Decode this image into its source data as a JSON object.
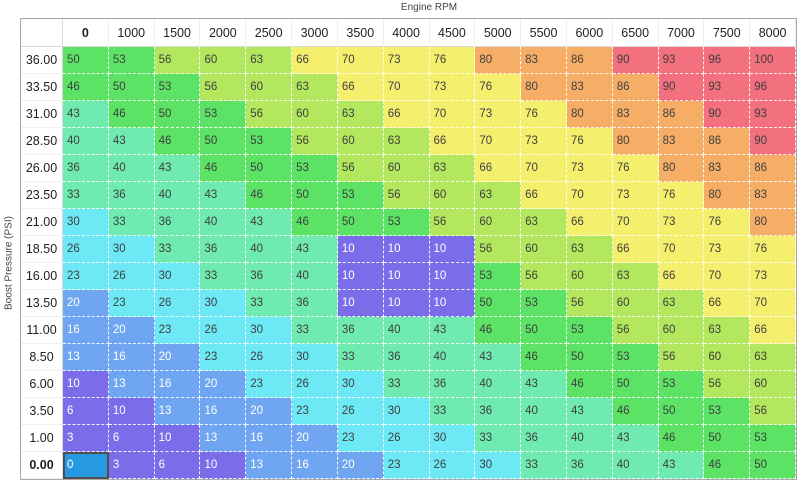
{
  "table": {
    "x_title": "Engine RPM",
    "y_title": "Boost Pressure (PSI)",
    "columns": [
      "0",
      "1000",
      "1500",
      "2000",
      "2500",
      "3000",
      "3500",
      "4000",
      "4500",
      "5000",
      "5500",
      "6000",
      "6500",
      "7000",
      "7500",
      "8000"
    ],
    "rows": [
      "36.00",
      "33.50",
      "31.00",
      "28.50",
      "26.00",
      "23.50",
      "21.00",
      "18.50",
      "16.00",
      "13.50",
      "11.00",
      "8.50",
      "6.00",
      "3.50",
      "1.00",
      "0.00"
    ],
    "values": [
      [
        50,
        53,
        56,
        60,
        63,
        66,
        70,
        73,
        76,
        80,
        83,
        86,
        90,
        93,
        96,
        100
      ],
      [
        46,
        50,
        53,
        56,
        60,
        63,
        66,
        70,
        73,
        76,
        80,
        83,
        86,
        90,
        93,
        96
      ],
      [
        43,
        46,
        50,
        53,
        56,
        60,
        63,
        66,
        70,
        73,
        76,
        80,
        83,
        86,
        90,
        93
      ],
      [
        40,
        43,
        46,
        50,
        53,
        56,
        60,
        63,
        66,
        70,
        73,
        76,
        80,
        83,
        86,
        90
      ],
      [
        36,
        40,
        43,
        46,
        50,
        53,
        56,
        60,
        63,
        66,
        70,
        73,
        76,
        80,
        83,
        86
      ],
      [
        33,
        36,
        40,
        43,
        46,
        50,
        53,
        56,
        60,
        63,
        66,
        70,
        73,
        76,
        80,
        83
      ],
      [
        30,
        33,
        36,
        40,
        43,
        46,
        50,
        53,
        56,
        60,
        63,
        66,
        70,
        73,
        76,
        80
      ],
      [
        26,
        30,
        33,
        36,
        40,
        43,
        10,
        10,
        10,
        56,
        60,
        63,
        66,
        70,
        73,
        76
      ],
      [
        23,
        26,
        30,
        33,
        36,
        40,
        10,
        10,
        10,
        53,
        56,
        60,
        63,
        66,
        70,
        73
      ],
      [
        20,
        23,
        26,
        30,
        33,
        36,
        10,
        10,
        10,
        50,
        53,
        56,
        60,
        63,
        66,
        70
      ],
      [
        16,
        20,
        23,
        26,
        30,
        33,
        36,
        40,
        43,
        46,
        50,
        53,
        56,
        60,
        63,
        66
      ],
      [
        13,
        16,
        20,
        23,
        26,
        30,
        33,
        36,
        40,
        43,
        46,
        50,
        53,
        56,
        60,
        63
      ],
      [
        10,
        13,
        16,
        20,
        23,
        26,
        30,
        33,
        36,
        40,
        43,
        46,
        50,
        53,
        56,
        60
      ],
      [
        6,
        10,
        13,
        16,
        20,
        23,
        26,
        30,
        33,
        36,
        40,
        43,
        46,
        50,
        53,
        56
      ],
      [
        3,
        6,
        10,
        13,
        16,
        20,
        23,
        26,
        30,
        33,
        36,
        40,
        43,
        46,
        50,
        53
      ],
      [
        0,
        3,
        6,
        10,
        13,
        16,
        20,
        23,
        26,
        30,
        33,
        36,
        40,
        43,
        46,
        50
      ]
    ],
    "selected_cell": {
      "row_index": 15,
      "col_index": 0,
      "bg": "#2799e3",
      "border": "#4f4f4f"
    },
    "color_bands": [
      {
        "min": 0,
        "max": 12,
        "bg": "#7b6ce9"
      },
      {
        "min": 13,
        "max": 22,
        "bg": "#6fa5f1"
      },
      {
        "min": 23,
        "max": 32,
        "bg": "#6de9f5"
      },
      {
        "min": 33,
        "max": 45,
        "bg": "#6feab0"
      },
      {
        "min": 46,
        "max": 55,
        "bg": "#5ce366"
      },
      {
        "min": 56,
        "max": 65,
        "bg": "#b3e75d"
      },
      {
        "min": 66,
        "max": 79,
        "bg": "#f5ef6e"
      },
      {
        "min": 80,
        "max": 89,
        "bg": "#f6ae67"
      },
      {
        "min": 90,
        "max": 100,
        "bg": "#f3707e"
      }
    ],
    "text_rule": {
      "white_text_max_value": 20,
      "light_color": "#ffffff",
      "dark_color": "#3f3f3f"
    }
  }
}
